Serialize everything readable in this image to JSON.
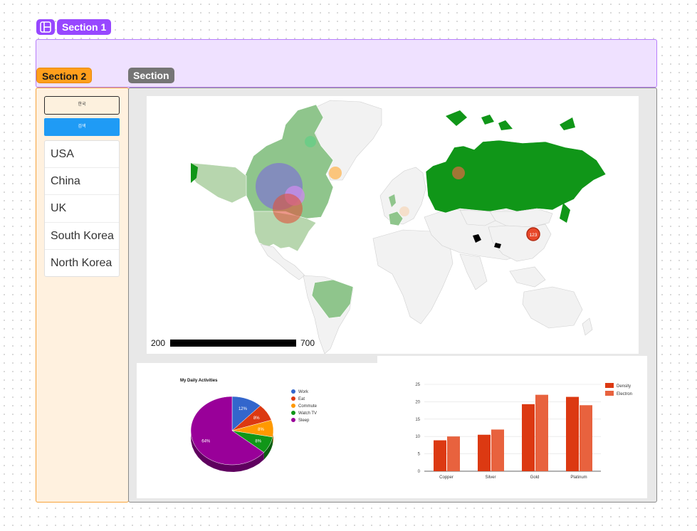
{
  "sections": {
    "section1": "Section 1",
    "section2": "Section 2",
    "section3": "Section"
  },
  "sidebar": {
    "korea_button": "한국",
    "search_button": "검색",
    "countries": [
      "USA",
      "China",
      "UK",
      "South Korea",
      "North Korea"
    ]
  },
  "map": {
    "legend_min": "200",
    "legend_max": "700",
    "marker_label": "123",
    "colors": {
      "high": "#109618",
      "mid": "#8fc58c",
      "low": "#b7d6ae",
      "none": "#f5f5f5"
    }
  },
  "pie": {
    "title": "My Daily Activities",
    "slices": [
      {
        "label": "Work",
        "value": 12,
        "color": "#3366cc"
      },
      {
        "label": "Eat",
        "value": 8,
        "color": "#dc3912"
      },
      {
        "label": "Commute",
        "value": 8,
        "color": "#ff9900"
      },
      {
        "label": "Watch TV",
        "value": 8,
        "color": "#109618"
      },
      {
        "label": "Sleep",
        "value": 64,
        "color": "#990099"
      }
    ]
  },
  "chart_data": [
    {
      "type": "pie",
      "title": "My Daily Activities",
      "categories": [
        "Work",
        "Eat",
        "Commute",
        "Watch TV",
        "Sleep"
      ],
      "values": [
        12,
        8,
        8,
        8,
        64
      ],
      "legend": "right"
    },
    {
      "type": "bar",
      "title": "",
      "categories": [
        "Copper",
        "Silver",
        "Gold",
        "Platinum"
      ],
      "series": [
        {
          "name": "Density",
          "values": [
            8.9,
            10.5,
            19.3,
            21.4
          ],
          "color": "#dc3912"
        },
        {
          "name": "Electron",
          "values": [
            10,
            12,
            22,
            19
          ],
          "color": "#e8623e"
        }
      ],
      "ylim": [
        0,
        25
      ],
      "yticks": [
        0,
        5,
        10,
        15,
        20,
        25
      ],
      "grid": true,
      "legend": "top-right"
    }
  ]
}
